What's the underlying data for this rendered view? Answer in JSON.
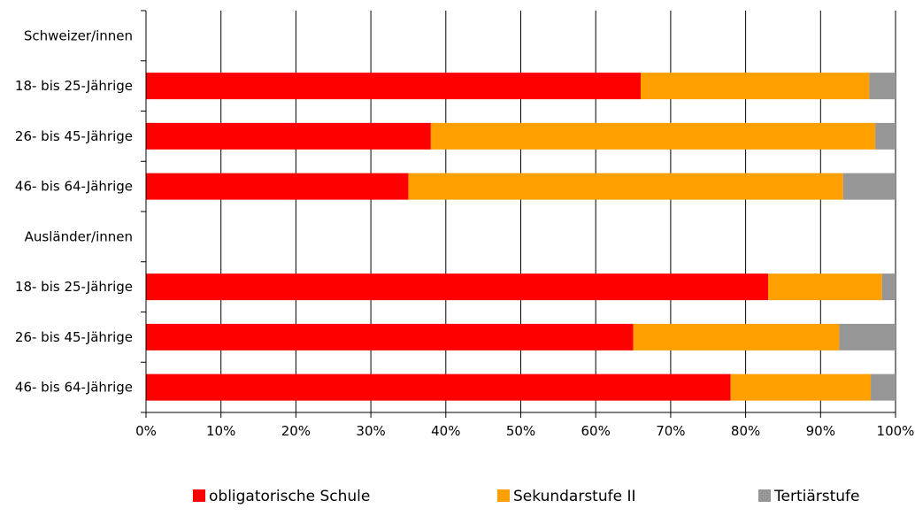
{
  "chart_data": {
    "type": "bar",
    "orientation": "horizontal",
    "stacked": "percent",
    "categories": [
      "Schweizer/innen",
      "18- bis 25-Jährige",
      "26- bis 45-Jährige",
      "46- bis 64-Jährige",
      "Ausländer/innen",
      "18- bis 25-Jährige",
      "26- bis 45-Jährige",
      "46- bis 64-Jährige"
    ],
    "series": [
      {
        "name": "obligatorische Schule",
        "color": "#ff0000",
        "values": [
          null,
          66,
          38,
          35,
          null,
          83,
          65,
          78
        ]
      },
      {
        "name": "Sekundarstufe II",
        "color": "#ffa000",
        "values": [
          null,
          30.5,
          59.3,
          58,
          null,
          15.2,
          27.5,
          18.7
        ]
      },
      {
        "name": "Tertiärstufe",
        "color": "#969696",
        "values": [
          null,
          3.5,
          2.7,
          7,
          null,
          1.8,
          7.5,
          3.3
        ]
      }
    ],
    "x_ticks": [
      "0%",
      "10%",
      "20%",
      "30%",
      "40%",
      "50%",
      "60%",
      "70%",
      "80%",
      "90%",
      "100%"
    ],
    "xlim": [
      0,
      100
    ],
    "grid": true,
    "legend": "bottom",
    "title": "",
    "xlabel": "",
    "ylabel": ""
  }
}
